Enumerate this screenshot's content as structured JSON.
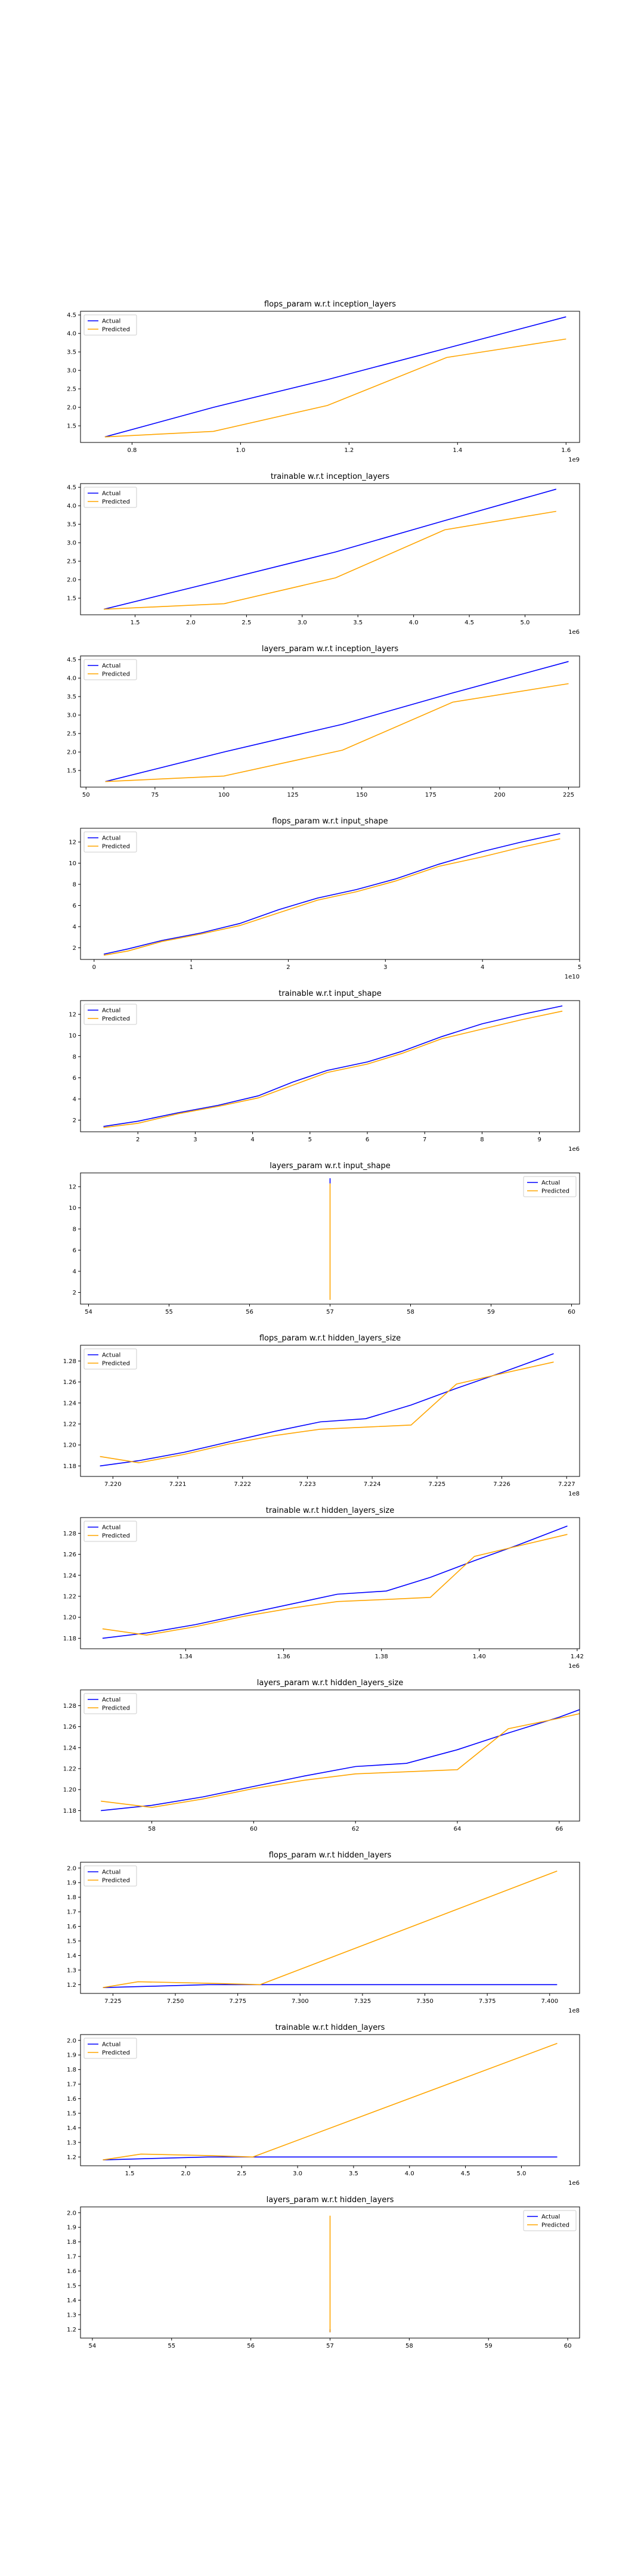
{
  "colors": {
    "actual": "#0000ff",
    "predicted": "#ffa500"
  },
  "chart_data": [
    {
      "type": "line",
      "title": "flops_param w.r.t inception_layers",
      "xlabel": "",
      "ylabel": "",
      "x_offset_label": "1e9",
      "xlim": [
        0.705,
        1.625
      ],
      "ylim": [
        1.05,
        4.6
      ],
      "xticks": [
        0.8,
        1.0,
        1.2,
        1.4,
        1.6
      ],
      "xtick_labels": [
        "0.8",
        "1.0",
        "1.2",
        "1.4",
        "1.6"
      ],
      "yticks": [
        1.5,
        2.0,
        2.5,
        3.0,
        3.5,
        4.0,
        4.5
      ],
      "ytick_labels": [
        "1.5",
        "2.0",
        "2.5",
        "3.0",
        "3.5",
        "4.0",
        "4.5"
      ],
      "grid": false,
      "legend": "upper left",
      "series": [
        {
          "name": "Actual",
          "x": [
            0.75,
            0.95,
            1.16,
            1.38,
            1.6
          ],
          "y": [
            1.2,
            2.0,
            2.75,
            3.6,
            4.45
          ]
        },
        {
          "name": "Predicted",
          "x": [
            0.75,
            0.95,
            1.16,
            1.38,
            1.6
          ],
          "y": [
            1.2,
            1.35,
            2.05,
            3.35,
            3.85
          ]
        }
      ]
    },
    {
      "type": "line",
      "title": "trainable w.r.t inception_layers",
      "xlabel": "",
      "ylabel": "",
      "x_offset_label": "1e6",
      "xlim": [
        1.01,
        5.49
      ],
      "ylim": [
        1.05,
        4.6
      ],
      "xticks": [
        1.5,
        2.0,
        2.5,
        3.0,
        3.5,
        4.0,
        4.5,
        5.0
      ],
      "xtick_labels": [
        "1.5",
        "2.0",
        "2.5",
        "3.0",
        "3.5",
        "4.0",
        "4.5",
        "5.0"
      ],
      "yticks": [
        1.5,
        2.0,
        2.5,
        3.0,
        3.5,
        4.0,
        4.5
      ],
      "ytick_labels": [
        "1.5",
        "2.0",
        "2.5",
        "3.0",
        "3.5",
        "4.0",
        "4.5"
      ],
      "grid": false,
      "legend": "upper left",
      "series": [
        {
          "name": "Actual",
          "x": [
            1.22,
            2.3,
            3.3,
            4.28,
            5.28
          ],
          "y": [
            1.2,
            2.0,
            2.75,
            3.6,
            4.45
          ]
        },
        {
          "name": "Predicted",
          "x": [
            1.22,
            2.3,
            3.3,
            4.28,
            5.28
          ],
          "y": [
            1.2,
            1.35,
            2.05,
            3.35,
            3.85
          ]
        }
      ]
    },
    {
      "type": "line",
      "title": "layers_param w.r.t inception_layers",
      "xlabel": "",
      "ylabel": "",
      "x_offset_label": "",
      "xlim": [
        48,
        229
      ],
      "ylim": [
        1.05,
        4.6
      ],
      "xticks": [
        50,
        75,
        100,
        125,
        150,
        175,
        200,
        225
      ],
      "xtick_labels": [
        "50",
        "75",
        "100",
        "125",
        "150",
        "175",
        "200",
        "225"
      ],
      "yticks": [
        1.5,
        2.0,
        2.5,
        3.0,
        3.5,
        4.0,
        4.5
      ],
      "ytick_labels": [
        "1.5",
        "2.0",
        "2.5",
        "3.0",
        "3.5",
        "4.0",
        "4.5"
      ],
      "grid": false,
      "legend": "upper left",
      "series": [
        {
          "name": "Actual",
          "x": [
            57,
            100,
            143,
            183,
            225
          ],
          "y": [
            1.2,
            2.0,
            2.75,
            3.6,
            4.45
          ]
        },
        {
          "name": "Predicted",
          "x": [
            57,
            100,
            143,
            183,
            225
          ],
          "y": [
            1.2,
            1.35,
            2.05,
            3.35,
            3.85
          ]
        }
      ]
    },
    {
      "type": "line",
      "title": "flops_param w.r.t input_shape",
      "xlabel": "",
      "ylabel": "",
      "x_offset_label": "1e10",
      "xlim": [
        -0.14,
        5.0
      ],
      "ylim": [
        0.9,
        13.3
      ],
      "xticks": [
        0,
        1,
        2,
        3,
        4,
        5
      ],
      "xtick_labels": [
        "0",
        "1",
        "2",
        "3",
        "4",
        "5"
      ],
      "yticks": [
        2,
        4,
        6,
        8,
        10,
        12
      ],
      "ytick_labels": [
        "2",
        "4",
        "6",
        "8",
        "10",
        "12"
      ],
      "grid": false,
      "legend": "upper left",
      "series": [
        {
          "name": "Actual",
          "x": [
            0.1,
            0.35,
            0.7,
            1.1,
            1.5,
            1.9,
            2.3,
            2.7,
            3.1,
            3.55,
            4.0,
            4.4,
            4.8
          ],
          "y": [
            1.4,
            1.9,
            2.7,
            3.4,
            4.3,
            5.6,
            6.7,
            7.5,
            8.5,
            9.9,
            11.1,
            12.0,
            12.8
          ]
        },
        {
          "name": "Predicted",
          "x": [
            0.1,
            0.35,
            0.7,
            1.1,
            1.5,
            1.9,
            2.3,
            2.7,
            3.1,
            3.55,
            4.0,
            4.4,
            4.8
          ],
          "y": [
            1.3,
            1.7,
            2.6,
            3.3,
            4.1,
            5.3,
            6.5,
            7.3,
            8.3,
            9.7,
            10.6,
            11.5,
            12.3
          ]
        }
      ]
    },
    {
      "type": "line",
      "title": "trainable w.r.t input_shape",
      "xlabel": "",
      "ylabel": "",
      "x_offset_label": "1e6",
      "xlim": [
        1.0,
        9.7
      ],
      "ylim": [
        0.9,
        13.3
      ],
      "xticks": [
        2,
        3,
        4,
        5,
        6,
        7,
        8,
        9
      ],
      "xtick_labels": [
        "2",
        "3",
        "4",
        "5",
        "6",
        "7",
        "8",
        "9"
      ],
      "yticks": [
        2,
        4,
        6,
        8,
        10,
        12
      ],
      "ytick_labels": [
        "2",
        "4",
        "6",
        "8",
        "10",
        "12"
      ],
      "grid": false,
      "legend": "upper left",
      "series": [
        {
          "name": "Actual",
          "x": [
            1.4,
            2.0,
            2.7,
            3.4,
            4.1,
            4.7,
            5.3,
            6.0,
            6.6,
            7.3,
            8.0,
            8.7,
            9.4
          ],
          "y": [
            1.4,
            1.9,
            2.7,
            3.4,
            4.3,
            5.6,
            6.7,
            7.5,
            8.5,
            9.9,
            11.1,
            12.0,
            12.8
          ]
        },
        {
          "name": "Predicted",
          "x": [
            1.4,
            2.0,
            2.7,
            3.4,
            4.1,
            4.7,
            5.3,
            6.0,
            6.6,
            7.3,
            8.0,
            8.7,
            9.4
          ],
          "y": [
            1.3,
            1.7,
            2.6,
            3.3,
            4.1,
            5.3,
            6.5,
            7.3,
            8.3,
            9.7,
            10.6,
            11.5,
            12.3
          ]
        }
      ]
    },
    {
      "type": "line",
      "title": "layers_param w.r.t input_shape",
      "xlabel": "",
      "ylabel": "",
      "x_offset_label": "",
      "xlim": [
        53.9,
        60.1
      ],
      "ylim": [
        0.9,
        13.3
      ],
      "xticks": [
        54,
        55,
        56,
        57,
        58,
        59,
        60
      ],
      "xtick_labels": [
        "54",
        "55",
        "56",
        "57",
        "58",
        "59",
        "60"
      ],
      "yticks": [
        2,
        4,
        6,
        8,
        10,
        12
      ],
      "ytick_labels": [
        "2",
        "4",
        "6",
        "8",
        "10",
        "12"
      ],
      "grid": false,
      "legend": "upper right",
      "series": [
        {
          "name": "Actual",
          "x": [
            57,
            57
          ],
          "y": [
            12.3,
            12.8
          ]
        },
        {
          "name": "Predicted",
          "x": [
            57,
            57
          ],
          "y": [
            1.3,
            12.3
          ]
        }
      ]
    },
    {
      "type": "line",
      "title": "flops_param w.r.t hidden_layers_size",
      "xlabel": "",
      "ylabel": "",
      "x_offset_label": "1e8",
      "xlim": [
        7.2195,
        7.2272
      ],
      "ylim": [
        1.17,
        1.295
      ],
      "xticks": [
        7.22,
        7.221,
        7.222,
        7.223,
        7.224,
        7.225,
        7.226,
        7.227
      ],
      "xtick_labels": [
        "7.220",
        "7.221",
        "7.222",
        "7.223",
        "7.224",
        "7.225",
        "7.226",
        "7.227"
      ],
      "yticks": [
        1.18,
        1.2,
        1.22,
        1.24,
        1.26,
        1.28
      ],
      "ytick_labels": [
        "1.18",
        "1.20",
        "1.22",
        "1.24",
        "1.26",
        "1.28"
      ],
      "grid": false,
      "legend": "upper left",
      "series": [
        {
          "name": "Actual",
          "x": [
            7.2198,
            7.2204,
            7.2211,
            7.2218,
            7.2225,
            7.2232,
            7.2239,
            7.2246,
            7.2253,
            7.226,
            7.2268
          ],
          "y": [
            1.18,
            1.185,
            1.193,
            1.203,
            1.213,
            1.222,
            1.225,
            1.238,
            1.254,
            1.269,
            1.287
          ]
        },
        {
          "name": "Predicted",
          "x": [
            7.2198,
            7.2204,
            7.2211,
            7.2218,
            7.2225,
            7.2232,
            7.2239,
            7.2246,
            7.2253,
            7.226,
            7.2268
          ],
          "y": [
            1.189,
            1.183,
            1.191,
            1.201,
            1.209,
            1.215,
            1.217,
            1.219,
            1.258,
            1.268,
            1.279
          ]
        }
      ]
    },
    {
      "type": "line",
      "title": "trainable w.r.t hidden_layers_size",
      "xlabel": "",
      "ylabel": "",
      "x_offset_label": "1e6",
      "xlim": [
        1.3185,
        1.4205
      ],
      "ylim": [
        1.17,
        1.295
      ],
      "xticks": [
        1.34,
        1.36,
        1.38,
        1.4,
        1.42
      ],
      "xtick_labels": [
        "1.34",
        "1.36",
        "1.38",
        "1.40",
        "1.42"
      ],
      "yticks": [
        1.18,
        1.2,
        1.22,
        1.24,
        1.26,
        1.28
      ],
      "ytick_labels": [
        "1.18",
        "1.20",
        "1.22",
        "1.24",
        "1.26",
        "1.28"
      ],
      "grid": false,
      "legend": "upper left",
      "series": [
        {
          "name": "Actual",
          "x": [
            1.323,
            1.332,
            1.342,
            1.352,
            1.362,
            1.371,
            1.381,
            1.39,
            1.399,
            1.408,
            1.418
          ],
          "y": [
            1.18,
            1.185,
            1.193,
            1.203,
            1.213,
            1.222,
            1.225,
            1.238,
            1.254,
            1.269,
            1.287
          ]
        },
        {
          "name": "Predicted",
          "x": [
            1.323,
            1.332,
            1.342,
            1.352,
            1.362,
            1.371,
            1.381,
            1.39,
            1.399,
            1.408,
            1.418
          ],
          "y": [
            1.189,
            1.183,
            1.191,
            1.201,
            1.209,
            1.215,
            1.217,
            1.219,
            1.258,
            1.268,
            1.279
          ]
        }
      ]
    },
    {
      "type": "line",
      "title": "layers_param w.r.t hidden_layers_size",
      "xlabel": "",
      "ylabel": "",
      "x_offset_label": "",
      "xlim": [
        56.6,
        66.4
      ],
      "ylim": [
        1.17,
        1.295
      ],
      "xticks": [
        58,
        60,
        62,
        64,
        66
      ],
      "xtick_labels": [
        "58",
        "60",
        "62",
        "64",
        "66"
      ],
      "yticks": [
        1.18,
        1.2,
        1.22,
        1.24,
        1.26,
        1.28
      ],
      "ytick_labels": [
        "1.18",
        "1.20",
        "1.22",
        "1.24",
        "1.26",
        "1.28"
      ],
      "grid": false,
      "legend": "upper left",
      "series": [
        {
          "name": "Actual",
          "x": [
            57,
            58,
            59,
            60,
            61,
            62,
            63,
            64,
            65,
            66,
            67
          ],
          "y": [
            1.18,
            1.185,
            1.193,
            1.203,
            1.213,
            1.222,
            1.225,
            1.238,
            1.254,
            1.269,
            1.287
          ]
        },
        {
          "name": "Predicted",
          "x": [
            57,
            58,
            59,
            60,
            61,
            62,
            63,
            64,
            65,
            66,
            67
          ],
          "y": [
            1.189,
            1.183,
            1.191,
            1.201,
            1.209,
            1.215,
            1.217,
            1.219,
            1.258,
            1.268,
            1.279
          ]
        }
      ]
    },
    {
      "type": "line",
      "title": "flops_param w.r.t hidden_layers",
      "xlabel": "",
      "ylabel": "",
      "x_offset_label": "1e8",
      "xlim": [
        7.212,
        7.412
      ],
      "ylim": [
        1.14,
        2.04
      ],
      "xticks": [
        7.225,
        7.25,
        7.275,
        7.3,
        7.325,
        7.35,
        7.375,
        7.4
      ],
      "xtick_labels": [
        "7.225",
        "7.250",
        "7.275",
        "7.300",
        "7.325",
        "7.350",
        "7.375",
        "7.400"
      ],
      "yticks": [
        1.2,
        1.3,
        1.4,
        1.5,
        1.6,
        1.7,
        1.8,
        1.9,
        2.0
      ],
      "ytick_labels": [
        "1.2",
        "1.3",
        "1.4",
        "1.5",
        "1.6",
        "1.7",
        "1.8",
        "1.9",
        "2.0"
      ],
      "grid": false,
      "legend": "upper left",
      "series": [
        {
          "name": "Actual",
          "x": [
            7.221,
            7.242,
            7.263,
            7.284,
            7.304,
            7.325,
            7.346,
            7.367,
            7.388,
            7.403
          ],
          "y": [
            1.18,
            1.19,
            1.2,
            1.2,
            1.2,
            1.2,
            1.2,
            1.2,
            1.2,
            1.2
          ]
        },
        {
          "name": "Predicted",
          "x": [
            7.221,
            7.235,
            7.263,
            7.284,
            7.403
          ],
          "y": [
            1.18,
            1.22,
            1.21,
            1.2,
            1.98
          ]
        }
      ]
    },
    {
      "type": "line",
      "title": "trainable w.r.t hidden_layers",
      "xlabel": "",
      "ylabel": "",
      "x_offset_label": "1e6",
      "xlim": [
        1.06,
        5.52
      ],
      "ylim": [
        1.14,
        2.04
      ],
      "xticks": [
        1.5,
        2.0,
        2.5,
        3.0,
        3.5,
        4.0,
        4.5,
        5.0
      ],
      "xtick_labels": [
        "1.5",
        "2.0",
        "2.5",
        "3.0",
        "3.5",
        "4.0",
        "4.5",
        "5.0"
      ],
      "yticks": [
        1.2,
        1.3,
        1.4,
        1.5,
        1.6,
        1.7,
        1.8,
        1.9,
        2.0
      ],
      "ytick_labels": [
        "1.2",
        "1.3",
        "1.4",
        "1.5",
        "1.6",
        "1.7",
        "1.8",
        "1.9",
        "2.0"
      ],
      "grid": false,
      "legend": "upper left",
      "series": [
        {
          "name": "Actual",
          "x": [
            1.26,
            1.7,
            2.2,
            2.6,
            3.1,
            3.6,
            4.1,
            4.6,
            5.0,
            5.32
          ],
          "y": [
            1.18,
            1.19,
            1.2,
            1.2,
            1.2,
            1.2,
            1.2,
            1.2,
            1.2,
            1.2
          ]
        },
        {
          "name": "Predicted",
          "x": [
            1.26,
            1.6,
            2.2,
            2.6,
            5.32
          ],
          "y": [
            1.18,
            1.22,
            1.21,
            1.2,
            1.98
          ]
        }
      ]
    },
    {
      "type": "line",
      "title": "layers_param w.r.t hidden_layers",
      "xlabel": "",
      "ylabel": "",
      "x_offset_label": "",
      "xlim": [
        53.85,
        60.15
      ],
      "ylim": [
        1.14,
        2.04
      ],
      "xticks": [
        54,
        55,
        56,
        57,
        58,
        59,
        60
      ],
      "xtick_labels": [
        "54",
        "55",
        "56",
        "57",
        "58",
        "59",
        "60"
      ],
      "yticks": [
        1.2,
        1.3,
        1.4,
        1.5,
        1.6,
        1.7,
        1.8,
        1.9,
        2.0
      ],
      "ytick_labels": [
        "1.2",
        "1.3",
        "1.4",
        "1.5",
        "1.6",
        "1.7",
        "1.8",
        "1.9",
        "2.0"
      ],
      "grid": false,
      "legend": "upper right",
      "series": [
        {
          "name": "Actual",
          "x": [
            57,
            57
          ],
          "y": [
            1.18,
            1.2
          ]
        },
        {
          "name": "Predicted",
          "x": [
            57,
            57
          ],
          "y": [
            1.18,
            1.98
          ]
        }
      ]
    }
  ]
}
